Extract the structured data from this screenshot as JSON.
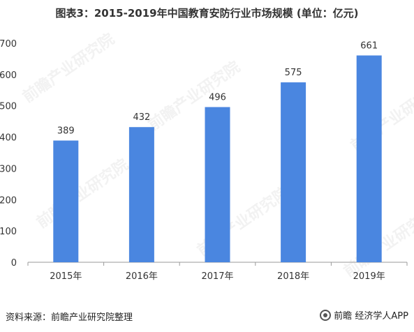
{
  "title": "图表3：2015-2019年中国教育安防行业市场规模 (单位：亿元)",
  "source_label": "资料来源：",
  "source_name": "前瞻产业研究院整理",
  "brand_text": "前瞻 经济学人APP",
  "watermark_text": "前瞻产业研究院",
  "colors": {
    "bar": "#4A86E0",
    "axis": "#999999",
    "text": "#333333"
  },
  "chart_data": {
    "type": "bar",
    "categories": [
      "2015年",
      "2016年",
      "2017年",
      "2018年",
      "2019年"
    ],
    "values": [
      389,
      432,
      496,
      575,
      661
    ],
    "data_labels": [
      "389",
      "432",
      "496",
      "575",
      "661"
    ],
    "title": "图表3：2015-2019年中国教育安防行业市场规模 (单位：亿元)",
    "xlabel": "",
    "ylabel": "",
    "ylim": [
      0,
      700
    ],
    "yticks": [
      0,
      100,
      200,
      300,
      400,
      500,
      600,
      700
    ],
    "ytick_labels": [
      "0",
      "100",
      "200",
      "300",
      "400",
      "500",
      "600",
      "700"
    ],
    "grid": false,
    "legend": false
  }
}
